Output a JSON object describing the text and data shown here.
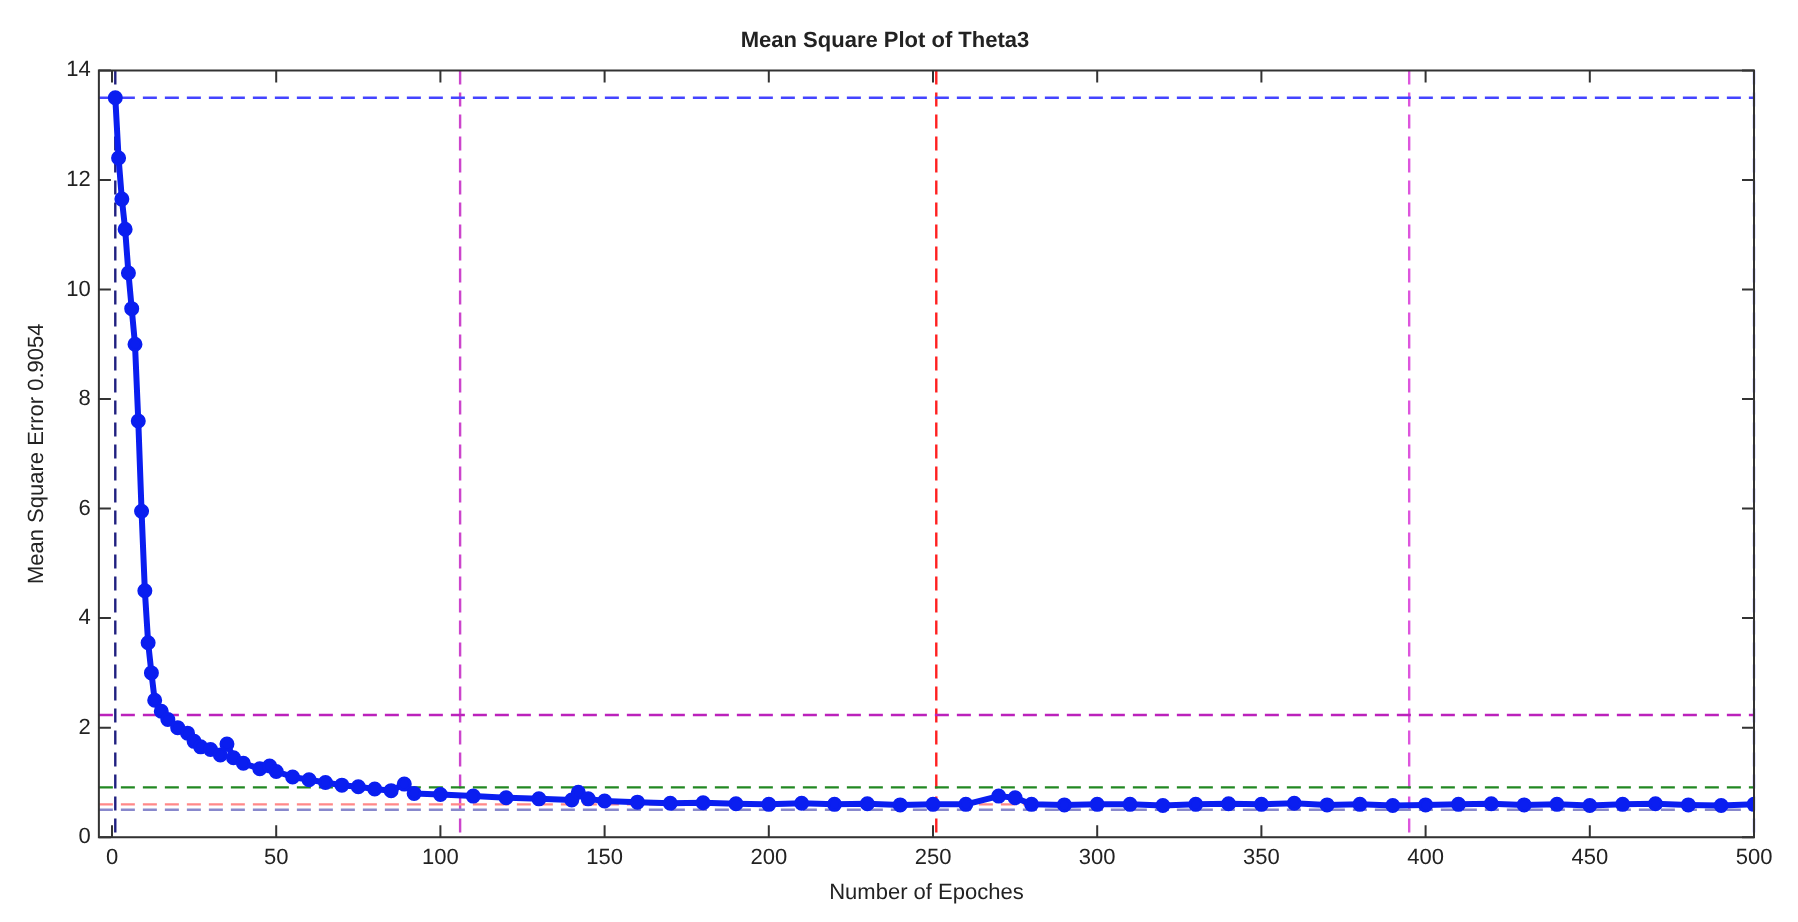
{
  "chart_data": {
    "type": "line",
    "title": "Mean Square Plot of Theta3",
    "xlabel": "Number of Epoches",
    "ylabel": "Mean Square Error 0.9054",
    "x": [
      1,
      2,
      3,
      4,
      5,
      6,
      7,
      8,
      9,
      10,
      11,
      12,
      13,
      15,
      17,
      20,
      23,
      25,
      27,
      30,
      33,
      35,
      37,
      40,
      45,
      48,
      50,
      55,
      60,
      65,
      70,
      75,
      80,
      85,
      89,
      92,
      100,
      110,
      120,
      130,
      140,
      142,
      145,
      150,
      160,
      170,
      180,
      190,
      200,
      210,
      220,
      230,
      240,
      250,
      260,
      270,
      275,
      280,
      290,
      300,
      310,
      320,
      330,
      340,
      350,
      360,
      370,
      380,
      390,
      400,
      410,
      420,
      430,
      440,
      450,
      460,
      470,
      480,
      490,
      500
    ],
    "series": [
      {
        "color": "#0a1ef0",
        "values": [
          13.5,
          12.4,
          11.65,
          11.1,
          10.3,
          9.65,
          9.0,
          7.6,
          5.95,
          4.5,
          3.55,
          3.0,
          2.5,
          2.3,
          2.15,
          2.0,
          1.9,
          1.75,
          1.65,
          1.6,
          1.5,
          1.7,
          1.45,
          1.35,
          1.25,
          1.3,
          1.2,
          1.1,
          1.05,
          1.0,
          0.95,
          0.92,
          0.88,
          0.85,
          0.97,
          0.8,
          0.78,
          0.75,
          0.72,
          0.7,
          0.68,
          0.82,
          0.7,
          0.66,
          0.64,
          0.62,
          0.63,
          0.61,
          0.6,
          0.62,
          0.6,
          0.61,
          0.59,
          0.6,
          0.6,
          0.75,
          0.72,
          0.6,
          0.59,
          0.6,
          0.6,
          0.58,
          0.6,
          0.61,
          0.6,
          0.62,
          0.59,
          0.6,
          0.58,
          0.59,
          0.6,
          0.61,
          0.59,
          0.6,
          0.58,
          0.6,
          0.61,
          0.59,
          0.58,
          0.6
        ]
      }
    ],
    "xlim": [
      -4,
      500
    ],
    "xticks": [
      0,
      50,
      100,
      150,
      200,
      250,
      300,
      350,
      400,
      450,
      500
    ],
    "ylim": [
      0,
      14
    ],
    "yticks": [
      0,
      2,
      4,
      6,
      8,
      10,
      12,
      14
    ],
    "grid": false,
    "legend": false,
    "marker": "circle",
    "line_style": "solid",
    "ref_lines": [
      {
        "axis": "x",
        "value": 1,
        "color": "#202080",
        "line_style": "dashed"
      },
      {
        "axis": "x",
        "value": 106,
        "color": "#cc44cc",
        "line_style": "dashed"
      },
      {
        "axis": "x",
        "value": 251,
        "color": "#ff2020",
        "line_style": "dashed"
      },
      {
        "axis": "x",
        "value": 395,
        "color": "#dd55dd",
        "line_style": "dashed"
      },
      {
        "axis": "x",
        "value": 500,
        "color": "#8888ff",
        "line_style": "dashed"
      },
      {
        "axis": "y",
        "value": 13.5,
        "color": "#4444ff",
        "line_style": "dashed"
      },
      {
        "axis": "y",
        "value": 2.23,
        "color": "#bb22bb",
        "line_style": "dashed"
      },
      {
        "axis": "y",
        "value": 0.91,
        "color": "#228822",
        "line_style": "dashed"
      },
      {
        "axis": "y",
        "value": 0.6,
        "color": "#ff8888",
        "line_style": "dashed"
      },
      {
        "axis": "y",
        "value": 0.5,
        "color": "#8888cc",
        "line_style": "dashed"
      }
    ]
  }
}
